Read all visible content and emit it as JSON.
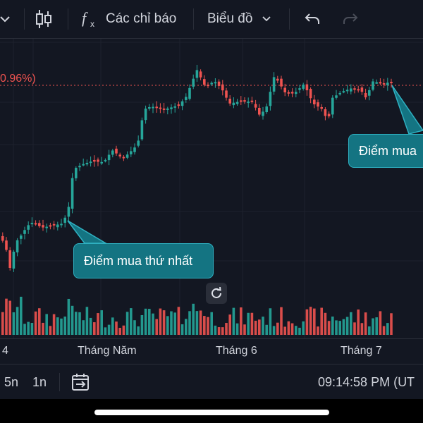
{
  "toolbar": {
    "indicators_label": "Các chỉ báo",
    "chart_type_label": "Biểu đồ"
  },
  "chart": {
    "last_change_pct": "0.96%)",
    "annotation_first_buy": "Điểm mua thứ nhất",
    "annotation_second_buy": "Điểm mua",
    "x_axis_labels": [
      "4",
      "Tháng Năm",
      "Tháng 6",
      "Tháng 7"
    ]
  },
  "colors": {
    "background": "#131722",
    "up": "#26a69a",
    "down": "#ef5350",
    "callout": "#147482"
  },
  "bottom_bar": {
    "intervals": [
      "5n",
      "1n"
    ],
    "time": "09:14:58 PM (UT"
  }
}
